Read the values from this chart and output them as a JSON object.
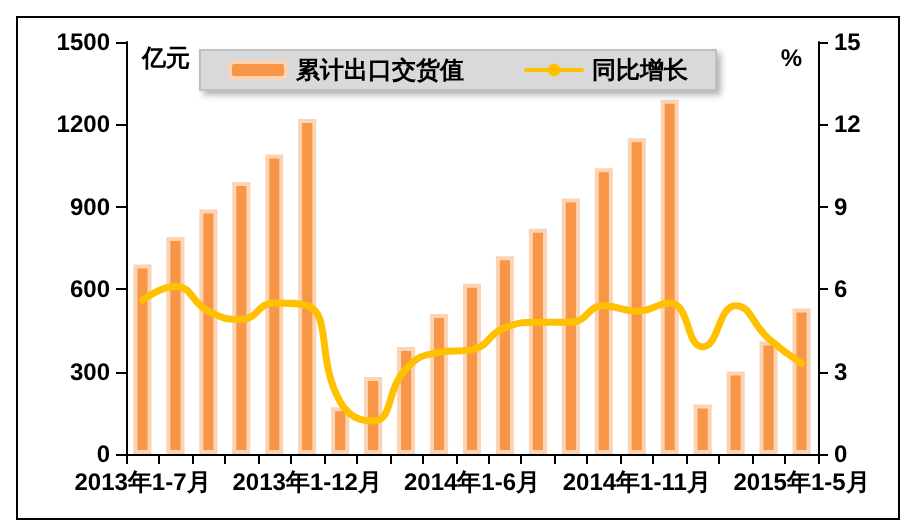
{
  "chart_data": {
    "type": "bar",
    "ylabel": "亿元",
    "y2label": "%",
    "categories": [
      "2013年1-7月",
      null,
      null,
      null,
      null,
      "2013年1-12月",
      null,
      null,
      null,
      null,
      "2014年1-6月",
      null,
      null,
      null,
      null,
      "2014年1-11月",
      null,
      null,
      null,
      null,
      "2015年1-5月"
    ],
    "series": [
      {
        "name": "累计出口交货值",
        "color": "#f79646",
        "values": [
          690,
          790,
          890,
          990,
          1090,
          1220,
          170,
          280,
          390,
          510,
          620,
          720,
          820,
          930,
          1040,
          1150,
          1290,
          180,
          300,
          410,
          530
        ]
      },
      {
        "name": "同比增长",
        "type": "line",
        "axis": "y2",
        "color": "#ffc000",
        "values": [
          5.6,
          6.1,
          5.2,
          4.9,
          5.5,
          5.4,
          1.9,
          1.2,
          3.1,
          3.7,
          3.8,
          4.6,
          4.8,
          4.8,
          5.4,
          5.2,
          5.5,
          3.9,
          5.4,
          4.2,
          3.3
        ]
      }
    ],
    "ylim": [
      0,
      1500
    ],
    "yticks": [
      0,
      300,
      600,
      900,
      1200,
      1500
    ],
    "y2lim": [
      0,
      15
    ],
    "y2ticks": [
      0,
      3,
      6,
      9,
      12,
      15
    ],
    "grid": false,
    "legend": "top",
    "marker": "none",
    "line_style": "solid"
  }
}
